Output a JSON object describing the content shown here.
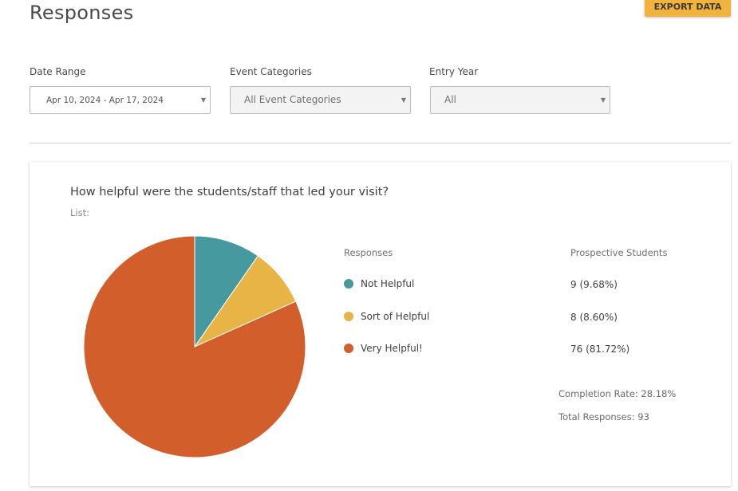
{
  "page": {
    "title": "Responses",
    "export_label": "EXPORT DATA"
  },
  "filters": [
    {
      "label": "Date Range",
      "value": "Apr 10, 2024 - Apr 17, 2024"
    },
    {
      "label": "Event Categories",
      "value": "All Event Categories"
    },
    {
      "label": "Entry Year",
      "value": "All"
    }
  ],
  "card": {
    "question": "How helpful were the students/staff that led your visit?",
    "list_label": "List:",
    "responses_header": "Responses",
    "audience_header": "Prospective Students",
    "rows": [
      {
        "label": "Not Helpful",
        "value": "9 (9.68%)",
        "color": "#46999f"
      },
      {
        "label": "Sort of Helpful",
        "value": "8 (8.60%)",
        "color": "#e8b445"
      },
      {
        "label": "Very Helpful!",
        "value": "76 (81.72%)",
        "color": "#d25f2b"
      }
    ],
    "completion_rate": "Completion Rate: 28.18%",
    "total_responses": "Total Responses: 93"
  },
  "chart_data": {
    "type": "pie",
    "categories": [
      "Not Helpful",
      "Sort of Helpful",
      "Very Helpful!"
    ],
    "values": [
      9,
      8,
      76
    ],
    "percentages": [
      9.68,
      8.6,
      81.72
    ],
    "colors": [
      "#46999f",
      "#e8b445",
      "#d25f2b"
    ]
  }
}
